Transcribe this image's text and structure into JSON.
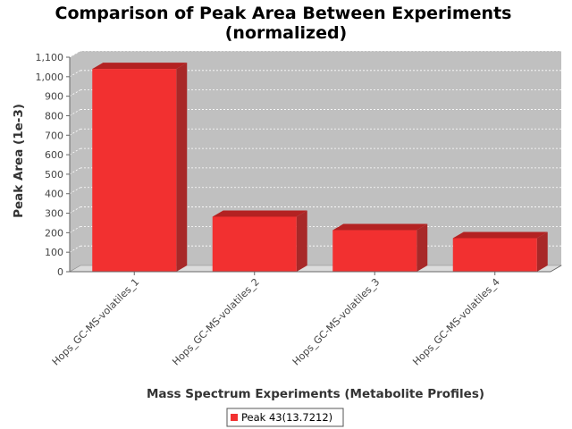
{
  "chart_data": {
    "type": "bar",
    "title": "Comparison of Peak Area Between Experiments",
    "subtitle": "(normalized)",
    "xlabel": "Mass Spectrum Experiments (Metabolite Profiles)",
    "ylabel": "Peak Area (1e-3)",
    "categories": [
      "Hops_GC-MS-volatiles_1",
      "Hops_GC-MS-volatiles_2",
      "Hops_GC-MS-volatiles_3",
      "Hops_GC-MS-volatiles_4"
    ],
    "series": [
      {
        "name": "Peak 43(13.7212)",
        "values": [
          1040,
          282,
          213,
          172
        ],
        "color": "#f23030"
      }
    ],
    "ylim": [
      0,
      1100
    ],
    "yticks": [
      "0",
      "100",
      "200",
      "300",
      "400",
      "500",
      "600",
      "700",
      "800",
      "900",
      "1,000",
      "1,100"
    ],
    "grid": true,
    "legend": "bottom-center",
    "style": "3d",
    "plot_background": "#c0c0c0"
  }
}
